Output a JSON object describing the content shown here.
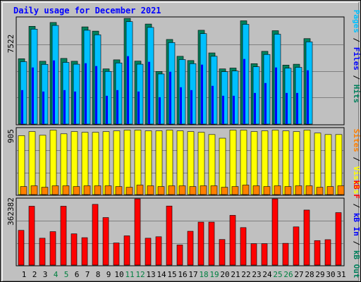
{
  "title": "Daily usage for December 2021",
  "colors": {
    "hits": "#00805c",
    "files": "#00c0ff",
    "pages": "#0000ff",
    "visits": "#ffff00",
    "sites": "#ff8000",
    "kbytes": "#ff0000",
    "kbout": "#00805c",
    "kbin": "#0000ff",
    "weekend": "#008040",
    "weekday": "#000000"
  },
  "legend": {
    "top": {
      "pages": "Pages",
      "sep1": " / ",
      "files": "Files",
      "sep2": " / ",
      "hits": "Hits"
    },
    "mid": {
      "sites": "Sites",
      "sep": " / ",
      "visits": "Visits"
    },
    "bot": {
      "kbf": "kB F",
      "sep1": " / ",
      "kbin": "kB In",
      "sep2": " / ",
      "kbout": "kB Out"
    }
  },
  "chart_data": [
    {
      "type": "bar",
      "panel": "top",
      "ymax_label": "7522",
      "ylim": [
        0,
        7522
      ],
      "categories": [
        "1",
        "2",
        "3",
        "4",
        "5",
        "6",
        "7",
        "8",
        "9",
        "10",
        "11",
        "12",
        "13",
        "14",
        "15",
        "16",
        "17",
        "18",
        "19",
        "20",
        "21",
        "22",
        "23",
        "24",
        "25",
        "26",
        "27",
        "28",
        "29",
        "30",
        "31"
      ],
      "series": [
        {
          "name": "Hits",
          "values": [
            4620,
            6910,
            4440,
            7180,
            4640,
            4440,
            6870,
            6570,
            3900,
            4540,
            7470,
            4450,
            7070,
            3720,
            5980,
            4790,
            4490,
            6630,
            5030,
            3900,
            3960,
            7300,
            4270,
            5140,
            6600,
            4170,
            4230,
            6040,
            0,
            0,
            0
          ]
        },
        {
          "name": "Files",
          "values": [
            4560,
            6860,
            4370,
            7120,
            4510,
            4380,
            6780,
            6460,
            3870,
            4470,
            7390,
            4380,
            6980,
            3690,
            5910,
            4710,
            4420,
            6540,
            4940,
            3850,
            3900,
            7200,
            4200,
            5070,
            6500,
            4100,
            4160,
            5960,
            0,
            0,
            0
          ]
        },
        {
          "name": "Pages",
          "values": [
            2400,
            4000,
            2300,
            4500,
            2400,
            2300,
            4300,
            4100,
            2000,
            2400,
            4800,
            2300,
            4400,
            1900,
            3700,
            2600,
            2400,
            4200,
            2700,
            2000,
            2000,
            4600,
            2200,
            2900,
            4000,
            2200,
            2200,
            3800,
            0,
            0,
            0
          ]
        }
      ]
    },
    {
      "type": "bar",
      "panel": "middle",
      "ymax_label": "905",
      "ylim": [
        0,
        905
      ],
      "categories": [
        "1",
        "2",
        "3",
        "4",
        "5",
        "6",
        "7",
        "8",
        "9",
        "10",
        "11",
        "12",
        "13",
        "14",
        "15",
        "16",
        "17",
        "18",
        "19",
        "20",
        "21",
        "22",
        "23",
        "24",
        "25",
        "26",
        "27",
        "28",
        "29",
        "30",
        "31"
      ],
      "series": [
        {
          "name": "Visits",
          "values": [
            805,
            860,
            810,
            880,
            830,
            860,
            850,
            850,
            860,
            870,
            880,
            880,
            870,
            870,
            880,
            870,
            860,
            850,
            820,
            770,
            880,
            880,
            860,
            870,
            880,
            870,
            860,
            880,
            840,
            820,
            820
          ]
        },
        {
          "name": "Sites",
          "values": [
            110,
            120,
            100,
            120,
            120,
            110,
            120,
            120,
            120,
            110,
            100,
            130,
            120,
            110,
            120,
            120,
            110,
            120,
            120,
            100,
            110,
            130,
            120,
            110,
            120,
            110,
            120,
            120,
            100,
            110,
            120
          ]
        }
      ]
    },
    {
      "type": "bar",
      "panel": "bottom",
      "ymax_label": "362382",
      "ylim": [
        0,
        362382
      ],
      "categories": [
        "1",
        "2",
        "3",
        "4",
        "5",
        "6",
        "7",
        "8",
        "9",
        "10",
        "11",
        "12",
        "13",
        "14",
        "15",
        "16",
        "17",
        "18",
        "19",
        "20",
        "21",
        "22",
        "23",
        "24",
        "25",
        "26",
        "27",
        "28",
        "29",
        "30",
        "31"
      ],
      "series": [
        {
          "name": "kB F",
          "values": [
            190000,
            322000,
            147000,
            183000,
            322000,
            171000,
            150000,
            332000,
            260000,
            121000,
            160000,
            362000,
            147000,
            155000,
            323000,
            110000,
            185000,
            235000,
            235000,
            140000,
            272000,
            205000,
            117000,
            117000,
            362000,
            119000,
            209000,
            301000,
            134000,
            139000,
            287000
          ]
        }
      ]
    }
  ],
  "day_labels": [
    "1",
    "2",
    "3",
    "4",
    "5",
    "6",
    "7",
    "8",
    "9",
    "10",
    "11",
    "12",
    "13",
    "14",
    "15",
    "16",
    "17",
    "18",
    "19",
    "20",
    "21",
    "22",
    "23",
    "24",
    "25",
    "26",
    "27",
    "28",
    "29",
    "30",
    "31"
  ],
  "weekend_days": [
    4,
    5,
    11,
    12,
    18,
    19,
    25,
    26
  ]
}
